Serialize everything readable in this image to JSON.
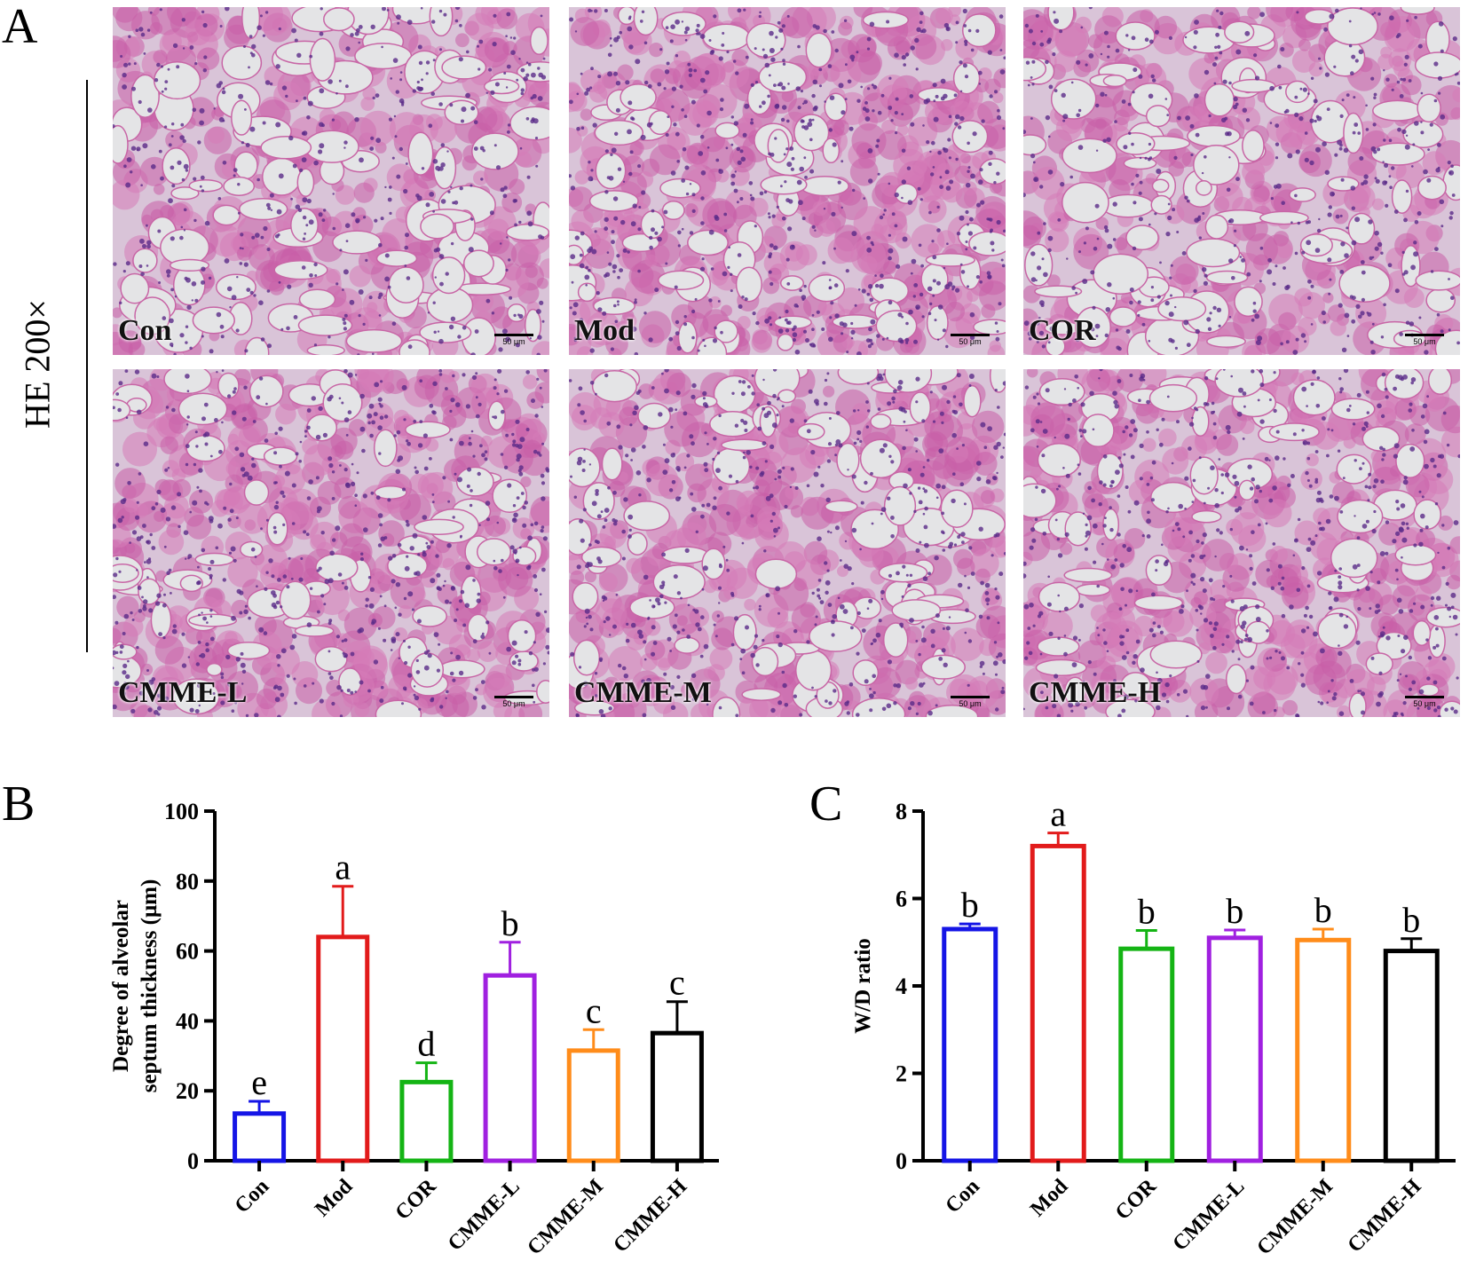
{
  "panel_letters": {
    "a": "A",
    "b": "B",
    "c": "C"
  },
  "magnification_label": "HE 200×",
  "micrographs": [
    {
      "label": "Con",
      "scale": "50 μm"
    },
    {
      "label": "Mod",
      "scale": "50 μm"
    },
    {
      "label": "COR",
      "scale": "50 μm"
    },
    {
      "label": "CMME-L",
      "scale": "50 μm"
    },
    {
      "label": "CMME-M",
      "scale": "50 μm"
    },
    {
      "label": "CMME-H",
      "scale": "50 μm"
    }
  ],
  "chart_data": [
    {
      "type": "bar",
      "panel": "B",
      "categories": [
        "Con",
        "Mod",
        "COR",
        "CMME-L",
        "CMME-M",
        "CMME-H"
      ],
      "values": [
        13.5,
        64,
        22.5,
        53,
        31.5,
        36.5
      ],
      "errors": [
        3.5,
        14.5,
        5.5,
        9.5,
        6,
        9
      ],
      "letters": [
        "e",
        "a",
        "d",
        "b",
        "c",
        "c"
      ],
      "colors": [
        "#1515e6",
        "#e21b1b",
        "#14b414",
        "#a020e0",
        "#ff8c1a",
        "#000000"
      ],
      "ylabel": "Degree of alveolar septum thickness (μm)",
      "ylabel_lines": [
        "Degree of alveolar",
        "septum thickness (μm)"
      ],
      "ylim": [
        0,
        100
      ],
      "yticks": [
        0,
        20,
        40,
        60,
        80,
        100
      ],
      "grid": false,
      "legend": "none"
    },
    {
      "type": "bar",
      "panel": "C",
      "categories": [
        "Con",
        "Mod",
        "COR",
        "CMME-L",
        "CMME-M",
        "CMME-H"
      ],
      "values": [
        5.3,
        7.2,
        4.85,
        5.1,
        5.05,
        4.8
      ],
      "errors": [
        0.12,
        0.3,
        0.42,
        0.18,
        0.25,
        0.28
      ],
      "letters": [
        "b",
        "a",
        "b",
        "b",
        "b",
        "b"
      ],
      "colors": [
        "#1515e6",
        "#e21b1b",
        "#14b414",
        "#a020e0",
        "#ff8c1a",
        "#000000"
      ],
      "ylabel": "W/D ratio",
      "ylim": [
        0,
        8
      ],
      "yticks": [
        0,
        2,
        4,
        6,
        8
      ],
      "grid": false,
      "legend": "none"
    }
  ]
}
